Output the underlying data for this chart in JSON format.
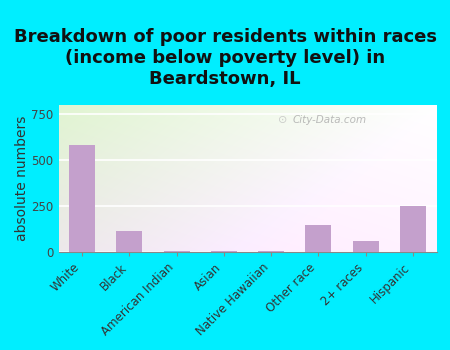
{
  "title": "Breakdown of poor residents within races\n(income below poverty level) in\nBeardstown, IL",
  "categories": [
    "White",
    "Black",
    "American Indian",
    "Asian",
    "Native Hawaiian",
    "Other race",
    "2+ races",
    "Hispanic"
  ],
  "values": [
    580,
    115,
    5,
    5,
    5,
    145,
    60,
    250
  ],
  "bar_color": "#c4a0cc",
  "ylabel": "absolute numbers",
  "ylim": [
    0,
    800
  ],
  "yticks": [
    0,
    250,
    500,
    750
  ],
  "background_outer": "#00eeff",
  "grid_color": "#ffffff",
  "watermark": "City-Data.com",
  "title_fontsize": 13,
  "ylabel_fontsize": 10,
  "tick_fontsize": 8.5
}
